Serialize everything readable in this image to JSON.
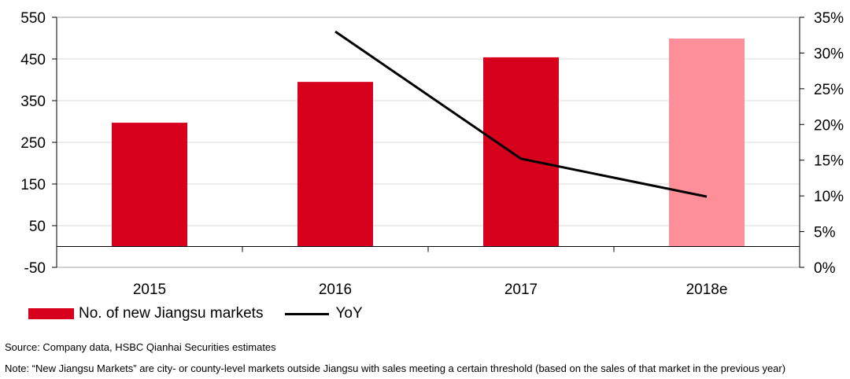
{
  "chart_data": {
    "type": "bar",
    "categories": [
      "2015",
      "2016",
      "2017",
      "2018e"
    ],
    "series": [
      {
        "name": "No. of new Jiangsu markets",
        "type": "bar",
        "axis": "left",
        "values": [
          297,
          395,
          454,
          499
        ],
        "colors": [
          "#d7001c",
          "#d7001c",
          "#d7001c",
          "#fd8f98"
        ]
      },
      {
        "name": "YoY",
        "type": "line",
        "axis": "right",
        "values": [
          null,
          33.0,
          15.2,
          9.9
        ],
        "color": "#000000"
      }
    ],
    "left_axis": {
      "min": -50,
      "max": 550,
      "ticks": [
        -50,
        50,
        150,
        250,
        350,
        450,
        550
      ]
    },
    "right_axis": {
      "min": 0,
      "max": 35,
      "ticks": [
        "0%",
        "5%",
        "10%",
        "15%",
        "20%",
        "25%",
        "30%",
        "35%"
      ]
    },
    "grid": true,
    "legend_position": "bottom-left"
  },
  "legend": {
    "bar_label": "No. of new Jiangsu markets",
    "line_label": "YoY",
    "bar_color": "#d7001c",
    "line_color": "#000000"
  },
  "footer": {
    "source": "Source: Company data, HSBC Qianhai Securities estimates",
    "note": "Note: “New Jiangsu Markets” are city- or county-level markets outside Jiangsu with sales meeting a certain threshold (based on the sales of that market in the previous year)"
  }
}
